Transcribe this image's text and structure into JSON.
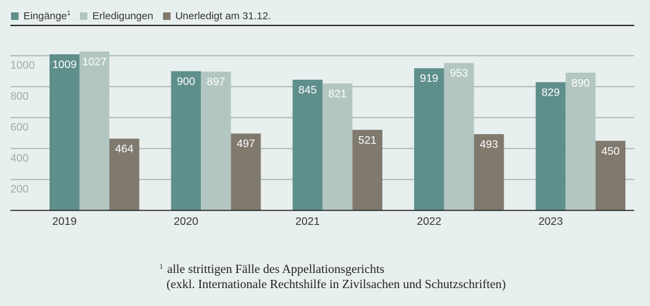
{
  "chart_data": {
    "type": "bar",
    "categories": [
      "2019",
      "2020",
      "2021",
      "2022",
      "2023"
    ],
    "series": [
      {
        "name": "Eingänge",
        "sup": "1",
        "color": "#5e8f8b",
        "values": [
          1009,
          900,
          845,
          919,
          829
        ]
      },
      {
        "name": "Erledigungen",
        "color": "#b3c6c2",
        "values": [
          1027,
          897,
          821,
          953,
          890
        ]
      },
      {
        "name": "Unerledigt am 31.12.",
        "color": "#80796e",
        "values": [
          464,
          497,
          521,
          493,
          450
        ]
      }
    ],
    "yticks": [
      200,
      400,
      600,
      800,
      1000
    ],
    "ylim": [
      0,
      1100
    ],
    "grid": true,
    "legend": "top-left",
    "title": "",
    "xlabel": "",
    "ylabel": ""
  },
  "footnote": {
    "marker": "1",
    "line1": "alle strittigen Fälle des Appellationsgerichts",
    "line2": "(exkl. Internationale Rechtshilfe in Zivilsachen und Schutzschriften)"
  }
}
